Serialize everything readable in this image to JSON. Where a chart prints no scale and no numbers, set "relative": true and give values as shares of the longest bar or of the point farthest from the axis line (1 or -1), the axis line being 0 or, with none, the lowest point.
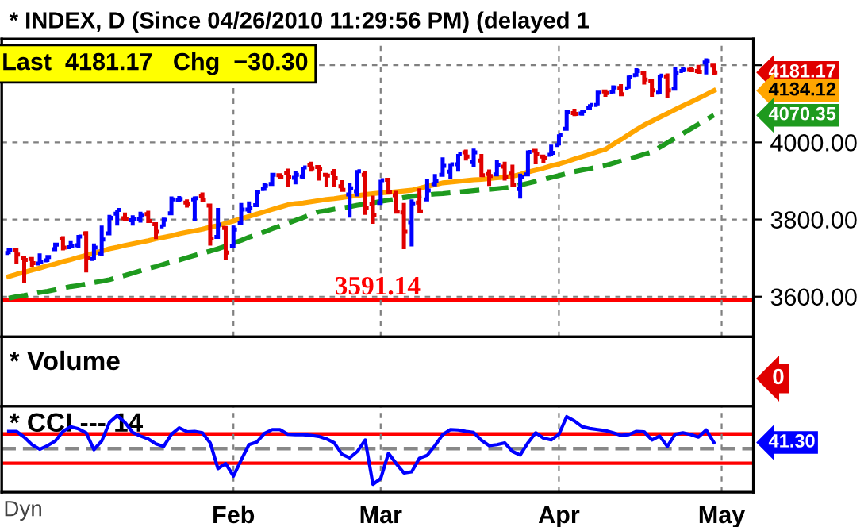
{
  "chart_data": [
    {
      "type": "candlestick",
      "title": "* INDEX, D (Since 04/26/2010 11:29:56 PM) (delayed 1",
      "categories": [
        null,
        null,
        null,
        null,
        null,
        null,
        null,
        null,
        null,
        null,
        null,
        null,
        null,
        null,
        null,
        null,
        null,
        null,
        null,
        null,
        null,
        null,
        null,
        null,
        null,
        null,
        null,
        null,
        null,
        null,
        null,
        null,
        null,
        null,
        null,
        null,
        null,
        null,
        null,
        null,
        null,
        null,
        null,
        null,
        null,
        null,
        null,
        null,
        null,
        null,
        null,
        null,
        null,
        null,
        null,
        null,
        null,
        null,
        null,
        null,
        null,
        null,
        null,
        null,
        null,
        null,
        null,
        null,
        null,
        null,
        null,
        null,
        null,
        null,
        null,
        null,
        null,
        null,
        null,
        null,
        null,
        null,
        null,
        null,
        null,
        null,
        null,
        null,
        null,
        null,
        null,
        null,
        null,
        null,
        null,
        null
      ],
      "ohlc": [
        [
          3713,
          3725,
          3710,
          3722
        ],
        [
          3722,
          3726,
          3685,
          3709
        ],
        [
          3700,
          3703,
          3636,
          3695
        ],
        [
          3698,
          3698,
          3676,
          3687
        ],
        [
          3686,
          3712,
          3684,
          3690
        ],
        [
          3694,
          3703,
          3690,
          3703
        ],
        [
          3723,
          3740,
          3723,
          3735
        ],
        [
          3751,
          3757,
          3720,
          3727
        ],
        [
          3728,
          3744,
          3726,
          3732
        ],
        [
          3733,
          3760,
          3726,
          3756
        ],
        [
          3764,
          3770,
          3663,
          3701
        ],
        [
          3698,
          3738,
          3696,
          3727
        ],
        [
          3712,
          3784,
          3706,
          3748
        ],
        [
          3764,
          3812,
          3764,
          3804
        ],
        [
          3815,
          3826,
          3784,
          3825
        ],
        [
          3803,
          3818,
          3795,
          3800
        ],
        [
          3798,
          3811,
          3784,
          3801
        ],
        [
          3802,
          3820,
          3792,
          3810
        ],
        [
          3814,
          3823,
          3792,
          3796
        ],
        [
          3788,
          3789,
          3749,
          3768
        ],
        [
          3782,
          3805,
          3781,
          3799
        ],
        [
          3816,
          3860,
          3816,
          3852
        ],
        [
          3850,
          3861,
          3845,
          3853
        ],
        [
          3844,
          3852,
          3831,
          3841
        ],
        [
          3852,
          3860,
          3797,
          3855
        ],
        [
          3862,
          3870,
          3848,
          3850
        ],
        [
          3836,
          3837,
          3732,
          3751
        ],
        [
          3755,
          3830,
          3755,
          3787
        ],
        [
          3778,
          3778,
          3694,
          3714
        ],
        [
          3732,
          3784,
          3725,
          3774
        ],
        [
          3792,
          3843,
          3792,
          3826
        ],
        [
          3826,
          3847,
          3817,
          3830
        ],
        [
          3837,
          3872,
          3837,
          3872
        ],
        [
          3879,
          3894,
          3874,
          3887
        ],
        [
          3892,
          3916,
          3892,
          3916
        ],
        [
          3915,
          3919,
          3907,
          3911
        ],
        [
          3921,
          3932,
          3885,
          3910
        ],
        [
          3908,
          3925,
          3891,
          3916
        ],
        [
          3912,
          3937,
          3905,
          3935
        ],
        [
          3940,
          3950,
          3924,
          3933
        ],
        [
          3936,
          3938,
          3901,
          3931
        ],
        [
          3916,
          3916,
          3885,
          3914
        ],
        [
          3921,
          3931,
          3885,
          3907
        ],
        [
          3886,
          3902,
          3874,
          3877
        ],
        [
          3865,
          3895,
          3805,
          3881
        ],
        [
          3873,
          3928,
          3860,
          3925
        ],
        [
          3916,
          3926,
          3812,
          3829
        ],
        [
          3839,
          3862,
          3789,
          3811
        ],
        [
          3843,
          3903,
          3843,
          3902
        ],
        [
          3903,
          3907,
          3868,
          3870
        ],
        [
          3863,
          3874,
          3818,
          3820
        ],
        [
          3818,
          3843,
          3723,
          3768
        ],
        [
          3793,
          3852,
          3730,
          3842
        ],
        [
          3844,
          3881,
          3819,
          3821
        ],
        [
          3852,
          3904,
          3852,
          3875
        ],
        [
          3892,
          3918,
          3886,
          3899
        ],
        [
          3916,
          3961,
          3916,
          3939
        ],
        [
          3924,
          3944,
          3904,
          3943
        ],
        [
          3943,
          3970,
          3924,
          3969
        ],
        [
          3974,
          3981,
          3953,
          3963
        ],
        [
          3949,
          3984,
          3935,
          3974
        ],
        [
          3953,
          3970,
          3914,
          3915
        ],
        [
          3918,
          3930,
          3887,
          3913
        ],
        [
          3917,
          3955,
          3917,
          3941
        ],
        [
          3937,
          3950,
          3901,
          3911
        ],
        [
          3919,
          3942,
          3889,
          3889
        ],
        [
          3879,
          3919,
          3854,
          3910
        ],
        [
          3917,
          3979,
          3917,
          3975
        ],
        [
          3978,
          3981,
          3943,
          3971
        ],
        [
          3963,
          3968,
          3945,
          3959
        ],
        [
          3968,
          3994,
          3965,
          3973
        ],
        [
          3993,
          4021,
          3992,
          4020
        ],
        [
          4035,
          4083,
          4035,
          4078
        ],
        [
          4076,
          4087,
          4068,
          4074
        ],
        [
          4075,
          4083,
          4069,
          4080
        ],
        [
          4089,
          4099,
          4084,
          4097
        ],
        [
          4097,
          4129,
          4096,
          4129
        ],
        [
          4132,
          4134,
          4118,
          4128
        ],
        [
          4131,
          4148,
          4127,
          4142
        ],
        [
          4141,
          4151,
          4121,
          4125
        ],
        [
          4140,
          4173,
          4139,
          4170
        ],
        [
          4174,
          4192,
          4170,
          4185
        ],
        [
          4179,
          4180,
          4150,
          4163
        ],
        [
          4159,
          4160,
          4118,
          4135
        ],
        [
          4129,
          4175,
          4126,
          4173
        ],
        [
          4171,
          4179,
          4116,
          4135
        ],
        [
          4139,
          4195,
          4139,
          4180
        ],
        [
          4185,
          4194,
          4182,
          4188
        ],
        [
          4188,
          4194,
          4183,
          4187
        ],
        [
          4185,
          4201,
          4182,
          4183
        ],
        [
          4207,
          4218,
          4176,
          4211
        ],
        [
          4199,
          4199,
          4174,
          4181.17
        ],
        null,
        null,
        null,
        null
      ],
      "colors": [
        "#0000ff",
        "#e00000",
        "#e00000",
        "#e00000",
        "#0000ff",
        "#0000ff",
        "#0000ff",
        "#e00000",
        "#0000ff",
        "#0000ff",
        "#e00000",
        "#0000ff",
        "#0000ff",
        "#0000ff",
        "#0000ff",
        "#e00000",
        "#0000ff",
        "#0000ff",
        "#e00000",
        "#e00000",
        "#0000ff",
        "#0000ff",
        "#0000ff",
        "#e00000",
        "#0000ff",
        "#e00000",
        "#e00000",
        "#0000ff",
        "#e00000",
        "#0000ff",
        "#0000ff",
        "#0000ff",
        "#0000ff",
        "#0000ff",
        "#0000ff",
        "#e00000",
        "#e00000",
        "#0000ff",
        "#0000ff",
        "#e00000",
        "#e00000",
        "#e00000",
        "#e00000",
        "#e00000",
        "#0000ff",
        "#0000ff",
        "#e00000",
        "#e00000",
        "#0000ff",
        "#e00000",
        "#e00000",
        "#e00000",
        "#0000ff",
        "#e00000",
        "#0000ff",
        "#0000ff",
        "#0000ff",
        "#0000ff",
        "#0000ff",
        "#e00000",
        "#0000ff",
        "#e00000",
        "#e00000",
        "#0000ff",
        "#e00000",
        "#e00000",
        "#0000ff",
        "#0000ff",
        "#e00000",
        "#e00000",
        "#0000ff",
        "#0000ff",
        "#0000ff",
        "#e00000",
        "#0000ff",
        "#0000ff",
        "#0000ff",
        "#e00000",
        "#0000ff",
        "#e00000",
        "#0000ff",
        "#0000ff",
        "#e00000",
        "#e00000",
        "#0000ff",
        "#e00000",
        "#0000ff",
        "#0000ff",
        "#e00000",
        "#e00000",
        "#0000ff",
        "#e00000",
        null,
        null,
        null,
        null
      ],
      "series": [
        {
          "type": "line",
          "color": "#ffa500",
          "line_style": "solid",
          "values": [
            3652,
            3658,
            3663,
            3669,
            3674,
            3680,
            3685,
            3691,
            3696,
            3702,
            3707,
            3713,
            3718,
            3724,
            3728,
            3733,
            3737,
            3741,
            3745,
            3750,
            3754,
            3758,
            3763,
            3767,
            3771,
            3775,
            3780,
            3784,
            3790,
            3796,
            3802,
            3808,
            3814,
            3820,
            3826,
            3832,
            3838,
            3841,
            3843,
            3846,
            3849,
            3852,
            3854,
            3857,
            3860,
            3862,
            3865,
            3867,
            3869,
            3870,
            3872,
            3874,
            3876,
            3881,
            3886,
            3890,
            3895,
            3897,
            3899,
            3901,
            3903,
            3904,
            3906,
            3908,
            3910,
            3912,
            3917,
            3923,
            3928,
            3933,
            3939,
            3944,
            3950,
            3957,
            3963,
            3969,
            3976,
            3982,
            3995,
            4007,
            4020,
            4033,
            4045,
            4055,
            4065,
            4075,
            4085,
            4095,
            4104,
            4114,
            4124,
            4134.12,
            null,
            null,
            null,
            null
          ]
        },
        {
          "type": "line",
          "color": "#1e9a1e",
          "line_style": "dashed",
          "values": [
            3596,
            3600,
            3603,
            3607,
            3611,
            3614,
            3618,
            3622,
            3626,
            3629,
            3633,
            3637,
            3640,
            3644,
            3650,
            3655,
            3661,
            3667,
            3673,
            3678,
            3684,
            3690,
            3695,
            3701,
            3707,
            3713,
            3718,
            3724,
            3731,
            3739,
            3746,
            3754,
            3761,
            3768,
            3776,
            3783,
            3790,
            3798,
            3805,
            3813,
            3820,
            3823,
            3827,
            3830,
            3833,
            3837,
            3840,
            3843,
            3847,
            3850,
            3853,
            3857,
            3860,
            3862,
            3864,
            3866,
            3867,
            3869,
            3871,
            3873,
            3875,
            3877,
            3878,
            3880,
            3882,
            3884,
            3889,
            3894,
            3899,
            3904,
            3909,
            3914,
            3919,
            3924,
            3928,
            3932,
            3936,
            3940,
            3946,
            3952,
            3958,
            3963,
            3969,
            3975,
            3987,
            3999,
            4011,
            4023,
            4035,
            4047,
            4059,
            4070.35,
            null,
            null,
            null,
            null
          ]
        }
      ],
      "ylim": [
        3496,
        4268
      ],
      "yticks": [
        {
          "value": 3600,
          "label": "3600.00"
        },
        {
          "value": 3800,
          "label": "3800.00"
        },
        {
          "value": 4000,
          "label": "4000.00"
        },
        {
          "value": 4200,
          "label": null
        }
      ],
      "ref_lines": [
        {
          "axis": "y",
          "value": 3591.14,
          "label": "3591.14",
          "color": "#ff0000",
          "line_style": "solid"
        }
      ],
      "annotations": [
        "Last  4181.17   Chg  −30.30",
        "4181.17",
        "4134.12",
        "4070.35"
      ],
      "grid": true,
      "tick_labels": "y"
    },
    {
      "type": "other",
      "title": "* Volume",
      "annotations": [
        "0"
      ]
    },
    {
      "type": "line",
      "title": "* CCI --- 14",
      "relative": true,
      "categories": [
        null,
        null,
        null,
        null,
        null,
        null,
        null,
        null,
        null,
        null,
        null,
        null,
        null,
        null,
        null,
        null,
        null,
        null,
        null,
        null,
        null,
        null,
        null,
        null,
        null,
        null,
        null,
        null,
        null,
        "Feb",
        null,
        null,
        null,
        null,
        null,
        null,
        null,
        null,
        null,
        null,
        null,
        null,
        null,
        null,
        null,
        null,
        null,
        null,
        "Mar",
        null,
        null,
        null,
        null,
        null,
        null,
        null,
        null,
        null,
        null,
        null,
        null,
        null,
        null,
        null,
        null,
        null,
        null,
        null,
        null,
        null,
        null,
        "Apr",
        null,
        null,
        null,
        null,
        null,
        null,
        null,
        null,
        null,
        null,
        null,
        null,
        null,
        null,
        null,
        null,
        null,
        null,
        null,
        null,
        "May",
        null,
        null,
        null
      ],
      "series": [
        {
          "color": "#0000ff",
          "values": [
            0.48,
            0.48,
            0.32,
            0.11,
            -0.02,
            0.08,
            0.21,
            0.48,
            0.61,
            0.55,
            0.44,
            -0.03,
            0.21,
            0.73,
            0.92,
            0.73,
            0.45,
            0.35,
            0.27,
            0.13,
            0.06,
            0.4,
            0.58,
            0.47,
            0.48,
            0.44,
            0.16,
            -0.56,
            -0.42,
            -0.77,
            -0.32,
            0.11,
            0.18,
            0.42,
            0.53,
            0.53,
            0.4,
            0.39,
            0.39,
            0.37,
            0.34,
            0.27,
            0.16,
            -0.16,
            -0.26,
            -0.08,
            0.24,
            -1,
            -0.84,
            -0.13,
            -0.42,
            -0.68,
            -0.65,
            -0.27,
            -0.19,
            0.08,
            0.39,
            0.53,
            0.52,
            0.48,
            0.45,
            0.23,
            0.08,
            0.11,
            0.16,
            -0.08,
            -0.18,
            0.16,
            0.44,
            0.29,
            0.24,
            0.4,
            0.89,
            0.77,
            0.61,
            0.56,
            0.53,
            0.5,
            0.44,
            0.37,
            0.39,
            0.48,
            0.47,
            0.24,
            0.35,
            0.06,
            0.4,
            0.44,
            0.39,
            0.32,
            0.52,
            0.17,
            null,
            null,
            null,
            null
          ]
        }
      ],
      "ref_lines": [
        {
          "axis": "y",
          "value": 0.41,
          "color": "#ff0000",
          "line_style": "solid"
        },
        {
          "axis": "y",
          "value": -0.41,
          "color": "#ff0000",
          "line_style": "solid"
        },
        {
          "axis": "y",
          "value": 0,
          "color": "#888888",
          "line_style": "dashed"
        }
      ],
      "annotations": [
        "41.30",
        "Dyn"
      ],
      "grid": "x",
      "tick_labels": "x"
    }
  ]
}
